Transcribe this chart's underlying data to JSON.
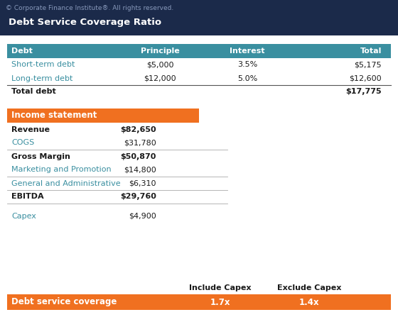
{
  "copyright": "© Corporate Finance Institute®. All rights reserved.",
  "title": "Debt Service Coverage Ratio",
  "header_bg": "#1b2a4a",
  "header_text": "#ffffff",
  "copyright_color": "#8899bb",
  "table_header_bg": "#3a8fa0",
  "table_header_text": "#ffffff",
  "orange_bg": "#f07020",
  "orange_text": "#ffffff",
  "teal_text": "#3a8fa0",
  "dark_text": "#1a1a1a",
  "body_bg": "#ffffff",
  "debt_headers": [
    "Debt",
    "Principle",
    "Interest",
    "Total"
  ],
  "debt_rows": [
    [
      "Short-term debt",
      "$5,000",
      "3.5%",
      "$5,175"
    ],
    [
      "Long-term debt",
      "$12,000",
      "5.0%",
      "$12,600"
    ]
  ],
  "total_debt_label": "Total debt",
  "total_debt_value": "$17,775",
  "income_header": "Income statement",
  "income_rows": [
    [
      "Revenue",
      "$82,650",
      true
    ],
    [
      "COGS",
      "$31,780",
      false
    ],
    [
      "Gross Margin",
      "$50,870",
      true
    ],
    [
      "Marketing and Promotion",
      "$14,800",
      false
    ],
    [
      "General and Administrative",
      "$6,310",
      false
    ],
    [
      "EBITDA",
      "$29,760",
      true
    ]
  ],
  "capex_label": "Capex",
  "capex_value": "$4,900",
  "coverage_headers": [
    "Include Capex",
    "Exclude Capex"
  ],
  "coverage_label": "Debt service coverage",
  "coverage_values": [
    "1.7x",
    "1.4x"
  ]
}
